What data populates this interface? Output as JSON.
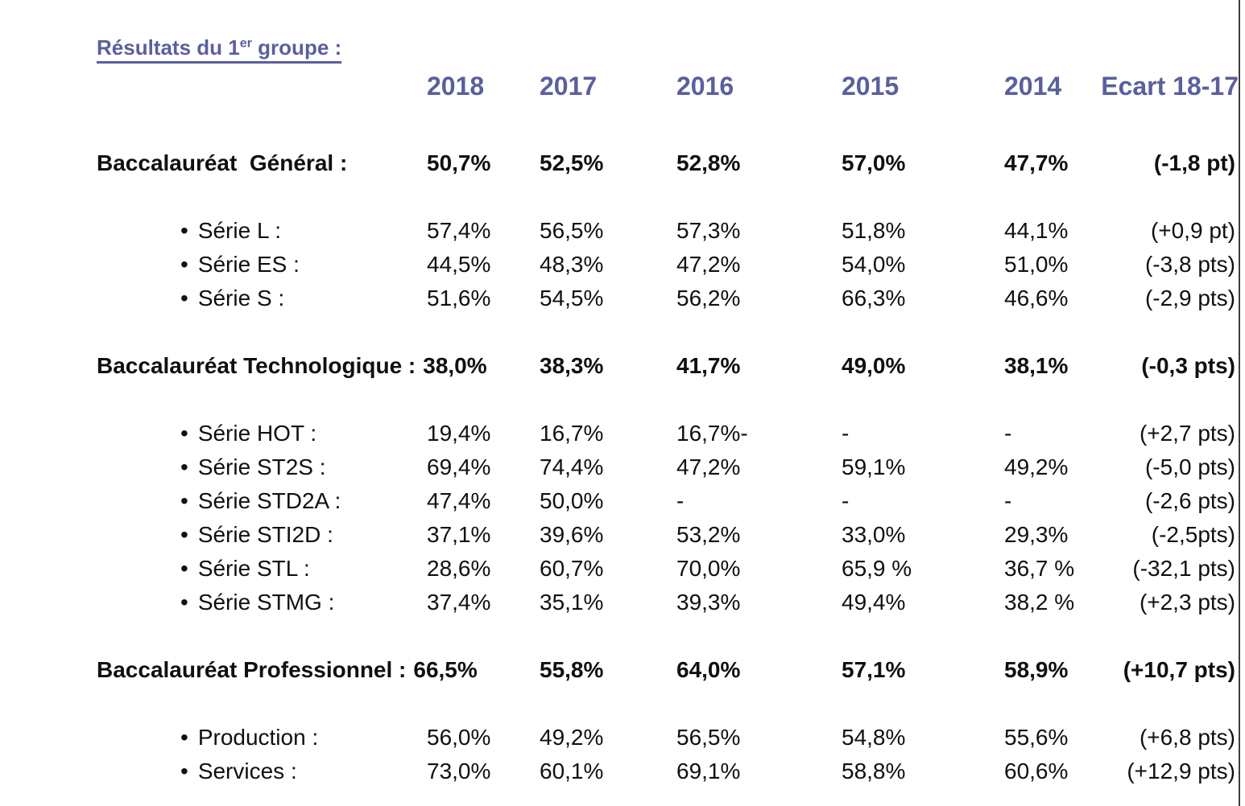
{
  "colors": {
    "heading_color": "#5a5f9e",
    "text_color": "#101010",
    "divider_color": "#3d3d3d"
  },
  "title": {
    "prefix": "Résultats du 1",
    "superscript": "er",
    "suffix": " groupe :"
  },
  "table": {
    "bullet": "•",
    "columns": [
      "2018",
      "2017",
      "2016",
      "2015",
      "2014",
      "Ecart 18-17"
    ],
    "rows": [
      {
        "type": "section",
        "label": "Baccalauréat  Général :",
        "values": [
          "50,7%",
          "52,5%",
          "52,8%",
          "57,0%",
          "47,7%",
          "(-1,8 pt)"
        ]
      },
      {
        "type": "item",
        "label": "Série L :",
        "values": [
          "57,4%",
          "56,5%",
          "57,3%",
          "51,8%",
          "44,1%",
          "(+0,9 pt)"
        ]
      },
      {
        "type": "item",
        "label": "Série ES :",
        "values": [
          "44,5%",
          "48,3%",
          "47,2%",
          "54,0%",
          "51,0%",
          "(-3,8 pts)"
        ]
      },
      {
        "type": "item",
        "label": "Série S :",
        "values": [
          "51,6%",
          "54,5%",
          "56,2%",
          "66,3%",
          "46,6%",
          "(-2,9 pts)"
        ]
      },
      {
        "type": "section",
        "label": "Baccalauréat Technologique :",
        "inline_first_value": true,
        "values": [
          "38,0%",
          "38,3%",
          "41,7%",
          "49,0%",
          "38,1%",
          "(-0,3 pts)"
        ]
      },
      {
        "type": "item",
        "label": "Série HOT :",
        "values": [
          "19,4%",
          "16,7%",
          "16,7%-",
          "-",
          "-",
          "(+2,7 pts)"
        ]
      },
      {
        "type": "item",
        "label": "Série ST2S :",
        "values": [
          "69,4%",
          "74,4%",
          "47,2%",
          "59,1%",
          "49,2%",
          "(-5,0 pts)"
        ]
      },
      {
        "type": "item",
        "label": "Série STD2A :",
        "values": [
          "47,4%",
          "50,0%",
          "-",
          "-",
          "-",
          "(-2,6 pts)"
        ]
      },
      {
        "type": "item",
        "label": "Série STI2D :",
        "values": [
          "37,1%",
          "39,6%",
          "53,2%",
          "33,0%",
          "29,3%",
          "(-2,5pts)"
        ]
      },
      {
        "type": "item",
        "label": "Série STL :",
        "values": [
          "28,6%",
          "60,7%",
          "70,0%",
          "65,9 %",
          "36,7 %",
          "(-32,1 pts)"
        ]
      },
      {
        "type": "item",
        "label": "Série STMG :",
        "values": [
          "37,4%",
          "35,1%",
          "39,3%",
          "49,4%",
          "38,2 %",
          "(+2,3 pts)"
        ]
      },
      {
        "type": "section",
        "label": "Baccalauréat Professionnel :",
        "inline_first_value": true,
        "values": [
          "66,5%",
          "55,8%",
          "64,0%",
          "57,1%",
          "58,9%",
          "(+10,7 pts)"
        ]
      },
      {
        "type": "item",
        "label": "Production :",
        "values": [
          "56,0%",
          "49,2%",
          "56,5%",
          "54,8%",
          "55,6%",
          "(+6,8 pts)"
        ]
      },
      {
        "type": "item",
        "label": "Services :",
        "values": [
          "73,0%",
          "60,1%",
          "69,1%",
          "58,8%",
          "60,6%",
          "(+12,9 pts)"
        ]
      }
    ]
  }
}
